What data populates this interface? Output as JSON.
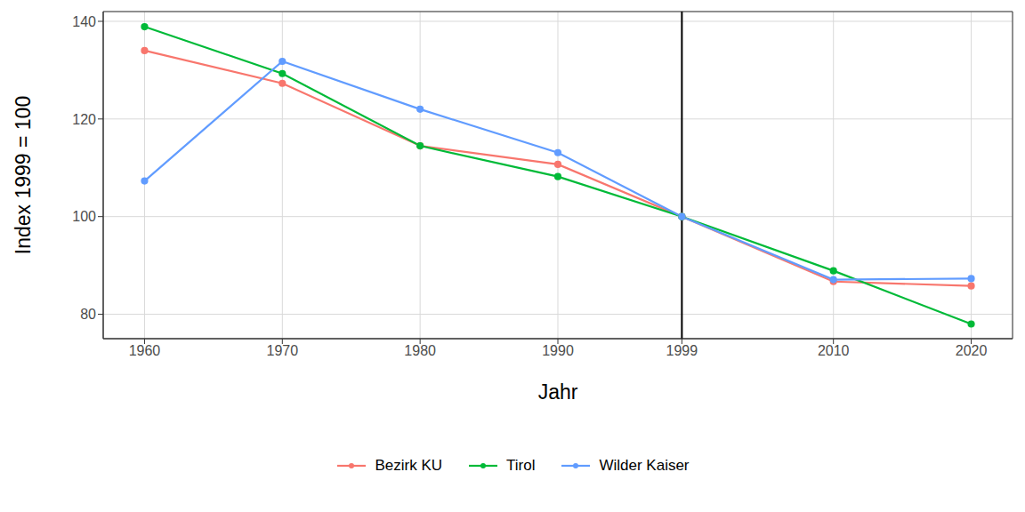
{
  "chart_data": {
    "type": "line",
    "x_label": "Jahr",
    "y_label": "Index 1999 = 100",
    "x": [
      1960,
      1970,
      1980,
      1990,
      1999,
      2010,
      2020
    ],
    "series": [
      {
        "name": "Bezirk KU",
        "color": "#F8766D",
        "marker": "circle",
        "values": [
          134.0,
          127.3,
          114.5,
          110.7,
          100,
          86.7,
          85.8
        ]
      },
      {
        "name": "Tirol",
        "color": "#00BA38",
        "marker": "circle",
        "values": [
          138.9,
          129.3,
          114.5,
          108.2,
          100,
          88.9,
          78.0
        ]
      },
      {
        "name": "Wilder Kaiser",
        "color": "#619CFF",
        "marker": "circle",
        "values": [
          107.3,
          131.8,
          122.0,
          113.1,
          100,
          87.1,
          87.3
        ]
      }
    ],
    "xlim": [
      1957,
      2023
    ],
    "xticks": [
      1960,
      1970,
      1980,
      1990,
      1999,
      2010,
      2020
    ],
    "ylim": [
      75,
      142
    ],
    "yticks": [
      80,
      100,
      120,
      140
    ],
    "vline": 1999,
    "grid": true,
    "legend": "bottom"
  }
}
